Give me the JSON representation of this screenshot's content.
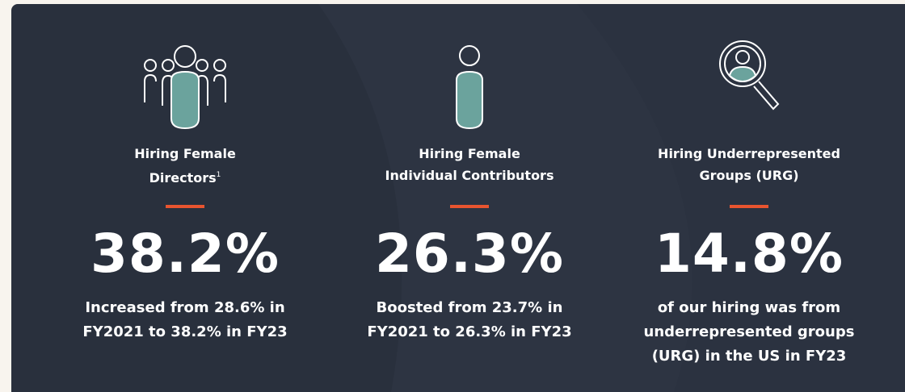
{
  "cards": [
    {
      "title_lines": [
        "Hiring Female",
        "Directors"
      ],
      "footnote": "1",
      "stat": "38.2%",
      "description_lines": [
        "Increased from 28.6% in",
        "FY2021 to 38.2% in FY23"
      ]
    },
    {
      "title_lines": [
        "Hiring Female",
        "Individual Contributors"
      ],
      "stat": "26.3%",
      "description_lines": [
        "Boosted from 23.7% in",
        "FY2021 to 26.3% in FY23"
      ]
    },
    {
      "title_lines": [
        "Hiring Underrepresented",
        "Groups (URG)"
      ],
      "stat": "14.8%",
      "description_lines": [
        "of our hiring was from",
        "underrepresented groups",
        "(URG) in the US in FY23"
      ]
    }
  ]
}
